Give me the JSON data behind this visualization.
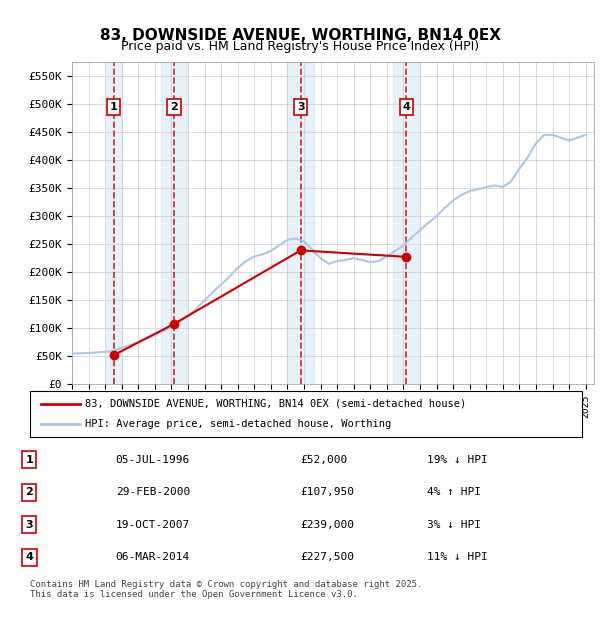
{
  "title": "83, DOWNSIDE AVENUE, WORTHING, BN14 0EX",
  "subtitle": "Price paid vs. HM Land Registry's House Price Index (HPI)",
  "ylabel_ticks": [
    "£0",
    "£50K",
    "£100K",
    "£150K",
    "£200K",
    "£250K",
    "£300K",
    "£350K",
    "£400K",
    "£450K",
    "£500K",
    "£550K"
  ],
  "ytick_values": [
    0,
    50000,
    100000,
    150000,
    200000,
    250000,
    300000,
    350000,
    400000,
    450000,
    500000,
    550000
  ],
  "ylim": [
    0,
    575000
  ],
  "transactions": [
    {
      "num": 1,
      "date": "05-JUL-1996",
      "date_num": 1996.51,
      "price": 52000,
      "hpi_rel": "19% ↓ HPI"
    },
    {
      "num": 2,
      "date": "29-FEB-2000",
      "date_num": 2000.16,
      "price": 107950,
      "hpi_rel": "4% ↑ HPI"
    },
    {
      "num": 3,
      "date": "19-OCT-2007",
      "date_num": 2007.8,
      "price": 239000,
      "hpi_rel": "3% ↓ HPI"
    },
    {
      "num": 4,
      "date": "06-MAR-2014",
      "date_num": 2014.18,
      "price": 227500,
      "hpi_rel": "11% ↓ HPI"
    }
  ],
  "hpi_line_color": "#aec6e8",
  "price_line_color": "#cc0000",
  "vline_color": "#cc0000",
  "shade_color": "#d0e4f5",
  "marker_box_color": "#cc0000",
  "legend_line1": "83, DOWNSIDE AVENUE, WORTHING, BN14 0EX (semi-detached house)",
  "legend_line2": "HPI: Average price, semi-detached house, Worthing",
  "footer": "Contains HM Land Registry data © Crown copyright and database right 2025.\nThis data is licensed under the Open Government Licence v3.0.",
  "hpi_data_x": [
    1994.0,
    1994.5,
    1995.0,
    1995.5,
    1996.0,
    1996.5,
    1997.0,
    1997.5,
    1998.0,
    1998.5,
    1999.0,
    1999.5,
    2000.0,
    2000.5,
    2001.0,
    2001.5,
    2002.0,
    2002.5,
    2003.0,
    2003.5,
    2004.0,
    2004.5,
    2005.0,
    2005.5,
    2006.0,
    2006.5,
    2007.0,
    2007.5,
    2008.0,
    2008.5,
    2009.0,
    2009.5,
    2010.0,
    2010.5,
    2011.0,
    2011.5,
    2012.0,
    2012.5,
    2013.0,
    2013.5,
    2014.0,
    2014.5,
    2015.0,
    2015.5,
    2016.0,
    2016.5,
    2017.0,
    2017.5,
    2018.0,
    2018.5,
    2019.0,
    2019.5,
    2020.0,
    2020.5,
    2021.0,
    2021.5,
    2022.0,
    2022.5,
    2023.0,
    2023.5,
    2024.0,
    2024.5,
    2025.0
  ],
  "hpi_data_y": [
    55000,
    55500,
    56000,
    57000,
    58000,
    59500,
    65000,
    70000,
    76000,
    82000,
    88000,
    95000,
    102000,
    112000,
    122000,
    135000,
    150000,
    165000,
    178000,
    192000,
    208000,
    220000,
    228000,
    232000,
    238000,
    248000,
    258000,
    260000,
    255000,
    240000,
    225000,
    215000,
    220000,
    222000,
    225000,
    222000,
    218000,
    220000,
    228000,
    238000,
    248000,
    262000,
    275000,
    288000,
    300000,
    315000,
    328000,
    338000,
    345000,
    348000,
    352000,
    355000,
    352000,
    362000,
    385000,
    405000,
    430000,
    445000,
    445000,
    440000,
    435000,
    440000,
    445000
  ],
  "price_data_x": [
    1996.51,
    2000.16,
    2007.8,
    2014.18
  ],
  "price_data_y": [
    52000,
    107950,
    239000,
    227500
  ],
  "xmin": 1994.0,
  "xmax": 2025.5
}
